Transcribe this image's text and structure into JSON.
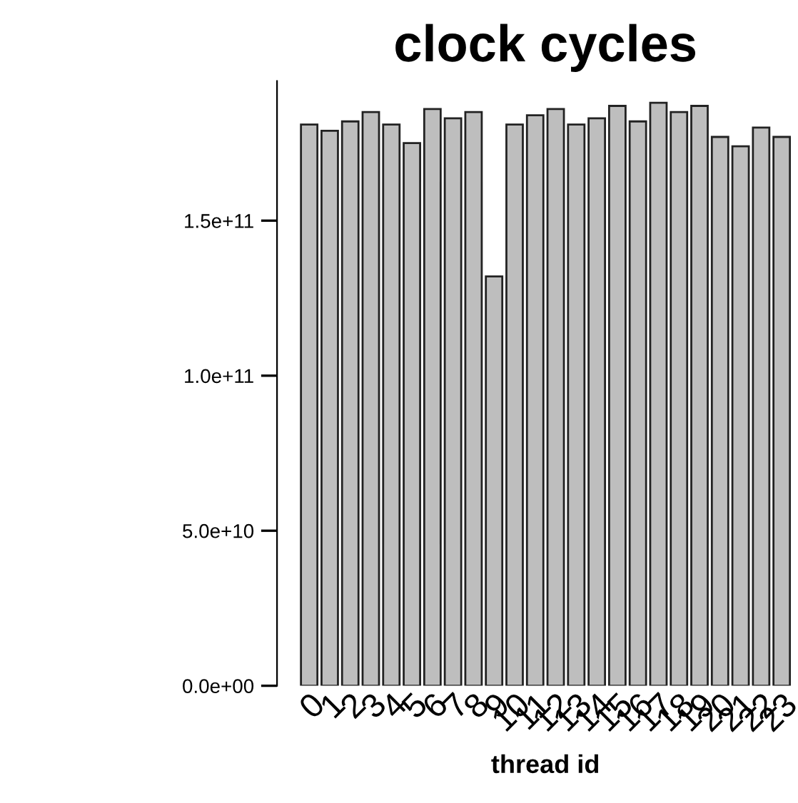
{
  "chart_data": {
    "type": "bar",
    "title": "clock cycles",
    "xlabel": "thread id",
    "categories": [
      "0",
      "1",
      "2",
      "3",
      "4",
      "5",
      "6",
      "7",
      "8",
      "9",
      "10",
      "11",
      "12",
      "13",
      "14",
      "15",
      "16",
      "17",
      "18",
      "19",
      "20",
      "21",
      "22",
      "23"
    ],
    "values": [
      181000000000.0,
      179000000000.0,
      182000000000.0,
      185000000000.0,
      181000000000.0,
      175000000000.0,
      186000000000.0,
      183000000000.0,
      185000000000.0,
      132000000000.0,
      181000000000.0,
      184000000000.0,
      186000000000.0,
      181000000000.0,
      183000000000.0,
      187000000000.0,
      182000000000.0,
      188000000000.0,
      185000000000.0,
      187000000000.0,
      177000000000.0,
      174000000000.0,
      180000000000.0,
      177000000000.0
    ],
    "color": "#bebebe",
    "ylim": [
      0,
      195000000000.0
    ],
    "yticks": [
      {
        "value": 0,
        "label": "0.0e+00"
      },
      {
        "value": 50000000000.0,
        "label": "5.0e+10"
      },
      {
        "value": 100000000000.0,
        "label": "1.0e+11"
      },
      {
        "value": 150000000000.0,
        "label": "1.5e+11"
      }
    ],
    "grid": false
  }
}
